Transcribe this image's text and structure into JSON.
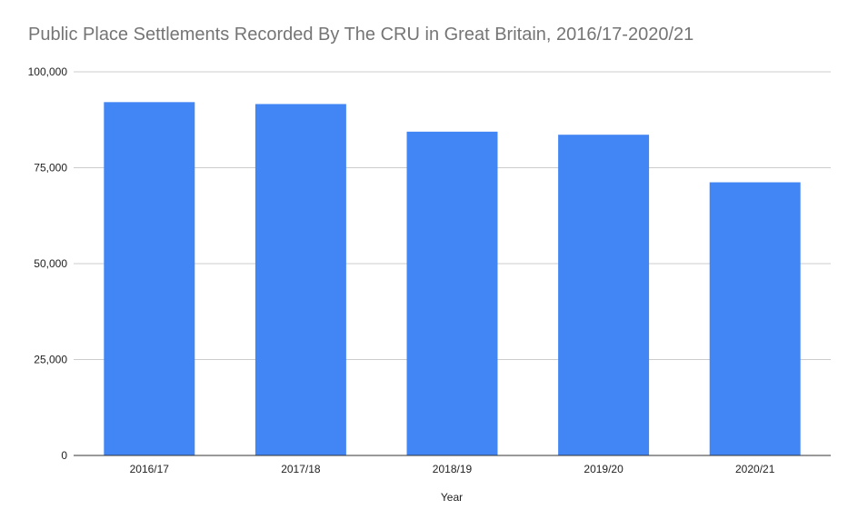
{
  "chart_data": {
    "type": "bar",
    "title": "Public Place Settlements Recorded By The CRU in Great Britain, 2016/17-2020/21",
    "xlabel": "Year",
    "ylabel": "",
    "categories": [
      "2016/17",
      "2017/18",
      "2018/19",
      "2019/20",
      "2020/21"
    ],
    "values": [
      92100,
      91600,
      84400,
      83600,
      71200
    ],
    "ylim": [
      0,
      100000
    ],
    "yticks": [
      0,
      25000,
      50000,
      75000,
      100000
    ],
    "ytick_labels": [
      "0",
      "25,000",
      "50,000",
      "75,000",
      "100,000"
    ],
    "grid": true,
    "legend": "none",
    "colors": {
      "bar": "#4285f4",
      "grid": "#cccccc",
      "axis": "#333333",
      "title": "#757575",
      "tick_text": "#222222"
    }
  }
}
